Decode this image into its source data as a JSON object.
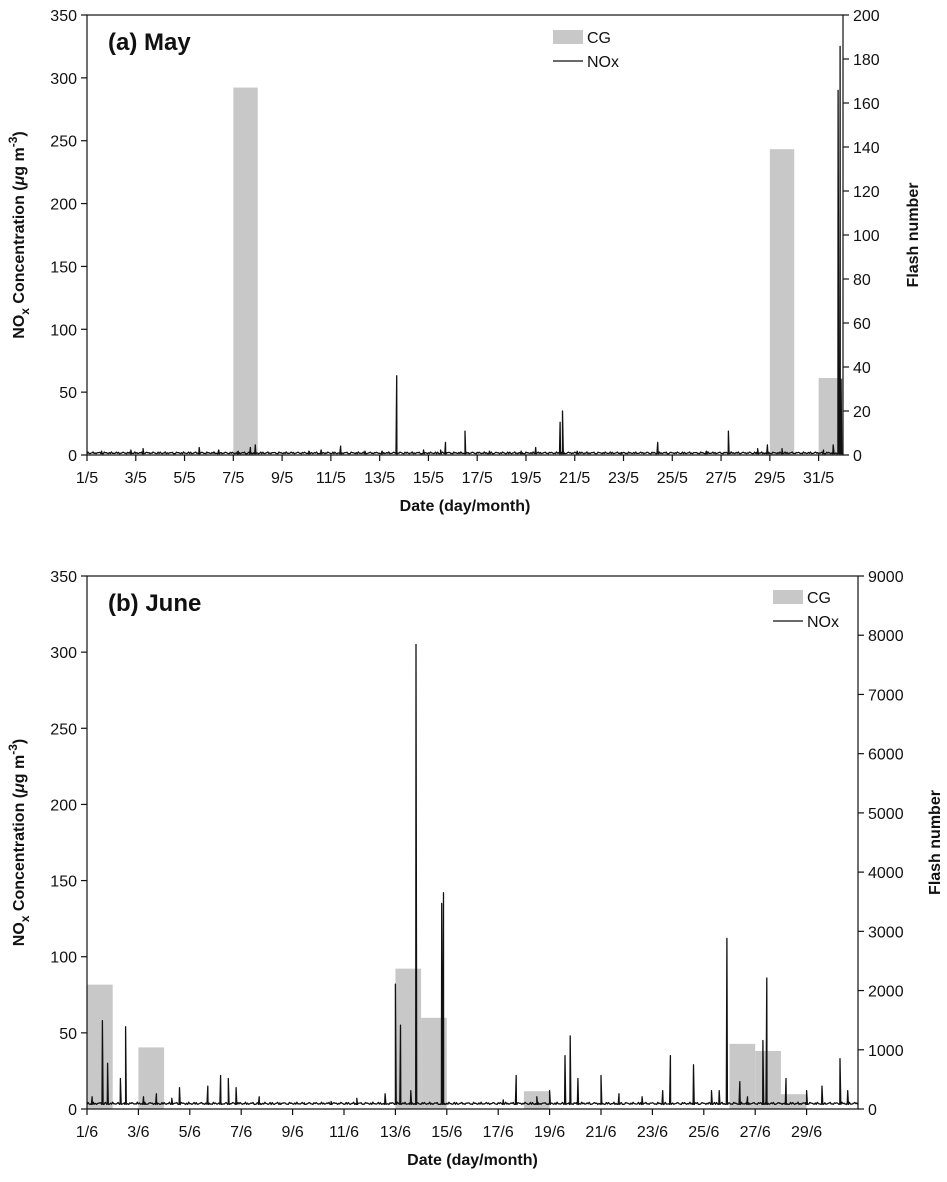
{
  "chart_data": [
    {
      "type": "bar+line",
      "title": "(a) May",
      "xlabel": "Date (day/month)",
      "ylabel_main": "NO",
      "ylabel_sub": "x",
      "ylabel_rest": " Concentration (",
      "ylabel_mu": "μ",
      "ylabel_unit": "g m",
      "ylabel_sup": "-3",
      "ylabel_close": ")",
      "y2label": "Flash number",
      "x_range": [
        1,
        32
      ],
      "ylim": [
        0,
        350
      ],
      "y2lim": [
        0,
        200
      ],
      "y_ticks": [
        "0",
        "50",
        "100",
        "150",
        "200",
        "250",
        "300",
        "350"
      ],
      "y2_ticks": [
        "0",
        "20",
        "40",
        "60",
        "80",
        "100",
        "120",
        "140",
        "160",
        "180",
        "200"
      ],
      "x_tick_labels": [
        "1/5",
        "3/5",
        "5/5",
        "7/5",
        "9/5",
        "11/5",
        "13/5",
        "15/5",
        "17/5",
        "19/5",
        "21/5",
        "23/5",
        "25/5",
        "27/5",
        "29/5",
        "31/5"
      ],
      "legend": {
        "position": "top-center",
        "bar_label": "CG",
        "line_label": "NOx"
      },
      "series": [
        {
          "name": "CG",
          "axis": "right",
          "kind": "bar",
          "day_start": [
            7,
            29,
            31
          ],
          "day_end": [
            8,
            30,
            32
          ],
          "values": [
            167,
            139,
            35
          ]
        },
        {
          "name": "NOx",
          "axis": "left",
          "kind": "line",
          "baseline": 1,
          "spikes": [
            [
              1.6,
              3
            ],
            [
              2.8,
              4
            ],
            [
              3.3,
              5
            ],
            [
              5.6,
              6
            ],
            [
              6.4,
              4
            ],
            [
              7.2,
              3
            ],
            [
              7.7,
              6
            ],
            [
              7.9,
              8
            ],
            [
              10.1,
              3
            ],
            [
              10.6,
              4
            ],
            [
              11.4,
              7
            ],
            [
              12.4,
              3
            ],
            [
              13.1,
              3
            ],
            [
              13.7,
              63
            ],
            [
              14.8,
              4
            ],
            [
              15.5,
              4
            ],
            [
              15.7,
              10
            ],
            [
              16.5,
              19
            ],
            [
              17.5,
              3
            ],
            [
              18.8,
              3
            ],
            [
              19.4,
              6
            ],
            [
              20.4,
              26
            ],
            [
              20.5,
              35
            ],
            [
              21.1,
              3
            ],
            [
              22.9,
              2
            ],
            [
              24.4,
              10
            ],
            [
              26.4,
              3
            ],
            [
              27.3,
              19
            ],
            [
              28.5,
              5
            ],
            [
              28.9,
              8
            ],
            [
              29.5,
              5
            ],
            [
              31.2,
              4
            ],
            [
              31.6,
              8
            ],
            [
              31.8,
              290
            ],
            [
              31.88,
              325
            ],
            [
              31.92,
              60
            ]
          ]
        }
      ]
    },
    {
      "type": "bar+line",
      "title": "(b) June",
      "xlabel": "Date (day/month)",
      "ylabel_main": "NO",
      "ylabel_sub": "x",
      "ylabel_rest": " Concentration (",
      "ylabel_mu": "μ",
      "ylabel_unit": "g m",
      "ylabel_sup": "-3",
      "ylabel_close": ")",
      "y2label": "Flash number",
      "x_range": [
        1,
        31
      ],
      "ylim": [
        0,
        350
      ],
      "y2lim": [
        0,
        9000
      ],
      "y_ticks": [
        "0",
        "50",
        "100",
        "150",
        "200",
        "250",
        "300",
        "350"
      ],
      "y2_ticks": [
        "0",
        "1000",
        "2000",
        "3000",
        "4000",
        "5000",
        "6000",
        "7000",
        "8000",
        "9000"
      ],
      "x_tick_labels": [
        "1/6",
        "3/6",
        "5/6",
        "7/6",
        "9/6",
        "11/6",
        "13/6",
        "15/6",
        "17/6",
        "19/6",
        "21/6",
        "23/6",
        "25/6",
        "27/6",
        "29/6"
      ],
      "legend": {
        "position": "top-right",
        "bar_label": "CG",
        "line_label": "NOx"
      },
      "series": [
        {
          "name": "CG",
          "axis": "right",
          "kind": "bar",
          "day_start": [
            1,
            3,
            13,
            14,
            18,
            26,
            27,
            28
          ],
          "day_end": [
            2,
            4,
            14,
            15,
            19,
            27,
            28,
            29
          ],
          "values": [
            2100,
            1040,
            2370,
            1540,
            300,
            1100,
            980,
            250
          ]
        },
        {
          "name": "NOx",
          "axis": "left",
          "kind": "line",
          "baseline": 3,
          "spikes": [
            [
              1.2,
              8
            ],
            [
              1.6,
              58
            ],
            [
              1.8,
              30
            ],
            [
              2.3,
              20
            ],
            [
              2.5,
              54
            ],
            [
              3.2,
              8
            ],
            [
              3.7,
              10
            ],
            [
              4.3,
              7
            ],
            [
              4.6,
              14
            ],
            [
              5.7,
              15
            ],
            [
              6.2,
              22
            ],
            [
              6.5,
              20
            ],
            [
              6.8,
              14
            ],
            [
              7.7,
              8
            ],
            [
              8.5,
              4
            ],
            [
              9.5,
              3
            ],
            [
              10.5,
              5
            ],
            [
              11.5,
              7
            ],
            [
              12.6,
              10
            ],
            [
              13.0,
              82
            ],
            [
              13.2,
              55
            ],
            [
              13.6,
              12
            ],
            [
              13.8,
              305
            ],
            [
              14.8,
              135
            ],
            [
              14.87,
              142
            ],
            [
              17.2,
              6
            ],
            [
              17.7,
              22
            ],
            [
              18.5,
              8
            ],
            [
              19.0,
              12
            ],
            [
              19.6,
              35
            ],
            [
              19.8,
              48
            ],
            [
              20.1,
              20
            ],
            [
              21.0,
              22
            ],
            [
              21.7,
              10
            ],
            [
              22.6,
              8
            ],
            [
              23.4,
              12
            ],
            [
              23.7,
              35
            ],
            [
              24.6,
              29
            ],
            [
              25.3,
              12
            ],
            [
              25.6,
              12
            ],
            [
              25.9,
              112
            ],
            [
              26.4,
              18
            ],
            [
              26.7,
              8
            ],
            [
              27.3,
              45
            ],
            [
              27.45,
              86
            ],
            [
              28.2,
              20
            ],
            [
              29.0,
              12
            ],
            [
              29.6,
              15
            ],
            [
              30.3,
              33
            ],
            [
              30.6,
              12
            ]
          ]
        }
      ]
    }
  ]
}
